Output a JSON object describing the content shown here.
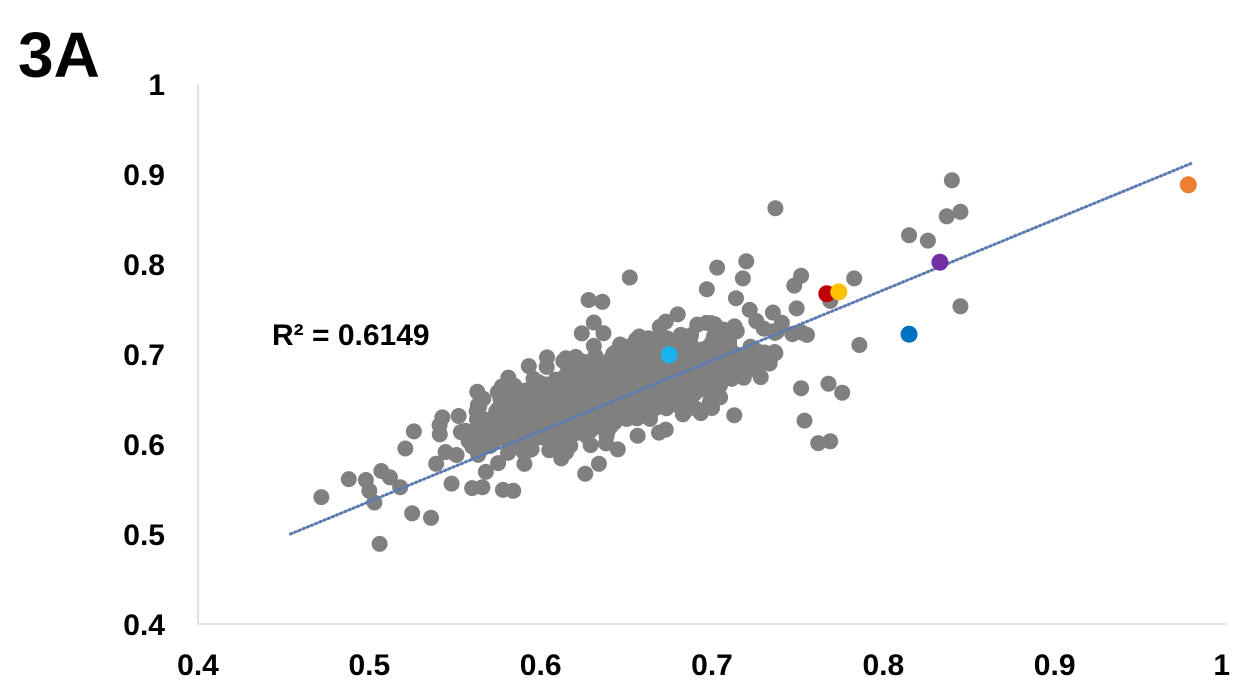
{
  "panel_label": "3A",
  "chart_data": {
    "type": "scatter",
    "title": "",
    "xlabel": "",
    "ylabel": "",
    "xlim": [
      0.4,
      1.0
    ],
    "ylim": [
      0.4,
      1.0
    ],
    "x_ticks": [
      "0.4",
      "0.5",
      "0.6",
      "0.7",
      "0.8",
      "0.9",
      "1"
    ],
    "y_ticks": [
      "0.4",
      "0.5",
      "0.6",
      "0.7",
      "0.8",
      "0.9",
      "1"
    ],
    "grid": false,
    "legend": "none",
    "annotation": "R² = 0.6149",
    "trendline": {
      "style": "dotted",
      "color": "#5b7bb0",
      "x": [
        0.454,
        0.98
      ],
      "y": [
        0.5,
        0.912
      ]
    },
    "highlighted_points": [
      {
        "x": 0.675,
        "y": 0.699,
        "color": "#19b4f0"
      },
      {
        "x": 0.767,
        "y": 0.767,
        "color": "#c00000"
      },
      {
        "x": 0.774,
        "y": 0.769,
        "color": "#ffc000"
      },
      {
        "x": 0.815,
        "y": 0.722,
        "color": "#0070c0"
      },
      {
        "x": 0.833,
        "y": 0.802,
        "color": "#7030a0"
      },
      {
        "x": 0.978,
        "y": 0.888,
        "color": "#ed7d31"
      }
    ],
    "gray_outliers": [
      {
        "x": 0.472,
        "y": 0.541
      },
      {
        "x": 0.488,
        "y": 0.561
      },
      {
        "x": 0.498,
        "y": 0.56
      },
      {
        "x": 0.5,
        "y": 0.548
      },
      {
        "x": 0.503,
        "y": 0.535
      },
      {
        "x": 0.506,
        "y": 0.489
      },
      {
        "x": 0.507,
        "y": 0.57
      },
      {
        "x": 0.512,
        "y": 0.563
      },
      {
        "x": 0.518,
        "y": 0.552
      },
      {
        "x": 0.521,
        "y": 0.595
      },
      {
        "x": 0.525,
        "y": 0.523
      },
      {
        "x": 0.526,
        "y": 0.614
      },
      {
        "x": 0.536,
        "y": 0.518
      },
      {
        "x": 0.539,
        "y": 0.578
      },
      {
        "x": 0.548,
        "y": 0.556
      },
      {
        "x": 0.56,
        "y": 0.551
      },
      {
        "x": 0.566,
        "y": 0.552
      },
      {
        "x": 0.568,
        "y": 0.569
      },
      {
        "x": 0.578,
        "y": 0.549
      },
      {
        "x": 0.584,
        "y": 0.548
      },
      {
        "x": 0.563,
        "y": 0.658
      },
      {
        "x": 0.598,
        "y": 0.666
      },
      {
        "x": 0.624,
        "y": 0.723
      },
      {
        "x": 0.631,
        "y": 0.735
      },
      {
        "x": 0.628,
        "y": 0.76
      },
      {
        "x": 0.636,
        "y": 0.758
      },
      {
        "x": 0.652,
        "y": 0.785
      },
      {
        "x": 0.673,
        "y": 0.736
      },
      {
        "x": 0.68,
        "y": 0.744
      },
      {
        "x": 0.697,
        "y": 0.772
      },
      {
        "x": 0.703,
        "y": 0.796
      },
      {
        "x": 0.714,
        "y": 0.762
      },
      {
        "x": 0.718,
        "y": 0.784
      },
      {
        "x": 0.72,
        "y": 0.803
      },
      {
        "x": 0.722,
        "y": 0.749
      },
      {
        "x": 0.737,
        "y": 0.862
      },
      {
        "x": 0.748,
        "y": 0.776
      },
      {
        "x": 0.752,
        "y": 0.787
      },
      {
        "x": 0.737,
        "y": 0.701
      },
      {
        "x": 0.752,
        "y": 0.662
      },
      {
        "x": 0.754,
        "y": 0.626
      },
      {
        "x": 0.762,
        "y": 0.601
      },
      {
        "x": 0.769,
        "y": 0.603
      },
      {
        "x": 0.768,
        "y": 0.667
      },
      {
        "x": 0.776,
        "y": 0.657
      },
      {
        "x": 0.769,
        "y": 0.759
      },
      {
        "x": 0.783,
        "y": 0.784
      },
      {
        "x": 0.786,
        "y": 0.71
      },
      {
        "x": 0.815,
        "y": 0.832
      },
      {
        "x": 0.826,
        "y": 0.826
      },
      {
        "x": 0.837,
        "y": 0.853
      },
      {
        "x": 0.84,
        "y": 0.893
      },
      {
        "x": 0.845,
        "y": 0.858
      },
      {
        "x": 0.845,
        "y": 0.753
      },
      {
        "x": 0.673,
        "y": 0.616
      },
      {
        "x": 0.683,
        "y": 0.633
      },
      {
        "x": 0.693,
        "y": 0.637
      },
      {
        "x": 0.7,
        "y": 0.64
      },
      {
        "x": 0.713,
        "y": 0.632
      },
      {
        "x": 0.612,
        "y": 0.584
      },
      {
        "x": 0.626,
        "y": 0.567
      },
      {
        "x": 0.634,
        "y": 0.578
      },
      {
        "x": 0.645,
        "y": 0.594
      },
      {
        "x": 0.586,
        "y": 0.614
      },
      {
        "x": 0.574,
        "y": 0.636
      }
    ],
    "gray_cluster": {
      "color": "#808080",
      "count": 1400,
      "center": {
        "x": 0.645,
        "y": 0.662
      },
      "core_ellipse": {
        "semi_major": 0.077,
        "semi_minor": 0.022,
        "angle_deg": 35
      }
    }
  }
}
